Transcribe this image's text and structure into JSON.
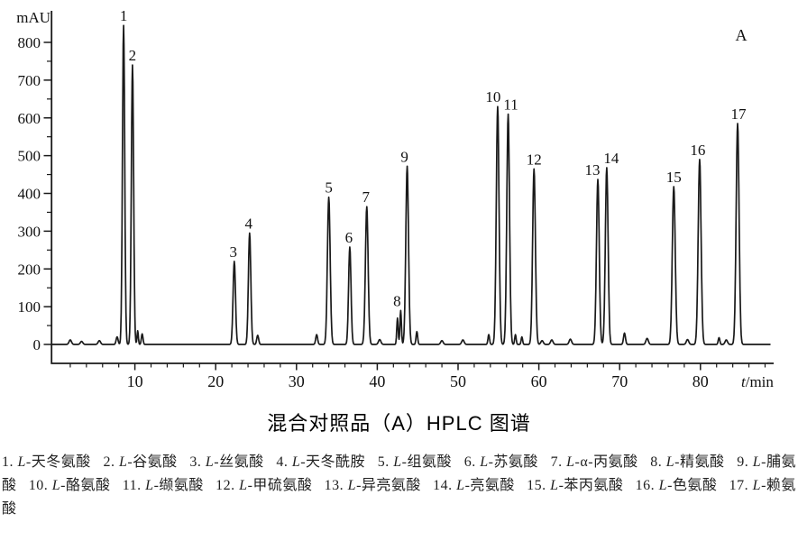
{
  "title": "混合对照品（A）HPLC 图谱",
  "panel_label": "A",
  "chart_data": {
    "type": "line",
    "kind": "hplc-chromatogram",
    "title": "混合对照品（A）HPLC 图谱",
    "ylabel": "mAU",
    "xlabel": "t/min",
    "line_color": "#1a1a1a",
    "axis_color": "#1a1a1a",
    "grid": false,
    "xlim": [
      0,
      88
    ],
    "ylim_display": [
      -60,
      870
    ],
    "x_ticks_major": [
      10,
      20,
      30,
      40,
      50,
      60,
      70,
      80
    ],
    "x_minor_step": 2,
    "y_ticks_major": [
      0,
      100,
      200,
      300,
      400,
      500,
      600,
      700,
      800
    ],
    "y_minor_step": 50,
    "peaks": [
      {
        "num": 1,
        "name": "L-天冬氨酸",
        "t_min": 8.6,
        "mAU": 845,
        "sigma": 0.14,
        "label_dx": 0
      },
      {
        "num": 2,
        "name": "L-谷氨酸",
        "t_min": 9.7,
        "mAU": 740,
        "sigma": 0.14,
        "label_dx": 0
      },
      {
        "num": 3,
        "name": "L-丝氨酸",
        "t_min": 22.3,
        "mAU": 220,
        "sigma": 0.15,
        "label_dx": -1
      },
      {
        "num": 4,
        "name": "L-天冬酰胺",
        "t_min": 24.2,
        "mAU": 295,
        "sigma": 0.15,
        "label_dx": -1
      },
      {
        "num": 5,
        "name": "L-组氨酸",
        "t_min": 34.0,
        "mAU": 390,
        "sigma": 0.17,
        "label_dx": 0
      },
      {
        "num": 6,
        "name": "L-苏氨酸",
        "t_min": 36.6,
        "mAU": 258,
        "sigma": 0.15,
        "label_dx": -1
      },
      {
        "num": 7,
        "name": "L-α-丙氨酸",
        "t_min": 38.7,
        "mAU": 365,
        "sigma": 0.17,
        "label_dx": -1
      },
      {
        "num": 8,
        "name": "L-精氨酸",
        "t_min": 42.9,
        "mAU": 90,
        "sigma": 0.09,
        "label_dx": -4
      },
      {
        "num": 9,
        "name": "L-脯氨酸",
        "t_min": 43.7,
        "mAU": 472,
        "sigma": 0.17,
        "label_dx": -3
      },
      {
        "num": 10,
        "name": "L-酪氨酸",
        "t_min": 54.9,
        "mAU": 630,
        "sigma": 0.17,
        "label_dx": -5
      },
      {
        "num": 11,
        "name": "L-缬氨酸",
        "t_min": 56.2,
        "mAU": 610,
        "sigma": 0.17,
        "label_dx": 3
      },
      {
        "num": 12,
        "name": "L-甲硫氨酸",
        "t_min": 59.4,
        "mAU": 465,
        "sigma": 0.17,
        "label_dx": 0
      },
      {
        "num": 13,
        "name": "L-异亮氨酸",
        "t_min": 67.3,
        "mAU": 437,
        "sigma": 0.17,
        "label_dx": -6
      },
      {
        "num": 14,
        "name": "L-亮氨酸",
        "t_min": 68.4,
        "mAU": 468,
        "sigma": 0.17,
        "label_dx": 5
      },
      {
        "num": 15,
        "name": "L-苯丙氨酸",
        "t_min": 76.7,
        "mAU": 418,
        "sigma": 0.18,
        "label_dx": 0
      },
      {
        "num": 16,
        "name": "L-色氨酸",
        "t_min": 79.9,
        "mAU": 490,
        "sigma": 0.18,
        "label_dx": -2
      },
      {
        "num": 17,
        "name": "L-赖氨酸",
        "t_min": 84.6,
        "mAU": 585,
        "sigma": 0.18,
        "label_dx": 1
      }
    ],
    "minor_peaks": [
      [
        2.0,
        12
      ],
      [
        3.4,
        8
      ],
      [
        5.6,
        10
      ],
      [
        7.8,
        20,
        0.12
      ],
      [
        10.35,
        36,
        0.08
      ],
      [
        10.9,
        28,
        0.1
      ],
      [
        25.2,
        24,
        0.12
      ],
      [
        32.5,
        26,
        0.12
      ],
      [
        40.3,
        13
      ],
      [
        42.5,
        70,
        0.09
      ],
      [
        44.9,
        34,
        0.1
      ],
      [
        48.0,
        10
      ],
      [
        50.6,
        12
      ],
      [
        53.8,
        26,
        0.1
      ],
      [
        57.1,
        26,
        0.09
      ],
      [
        57.9,
        20,
        0.09
      ],
      [
        60.4,
        10
      ],
      [
        61.6,
        12
      ],
      [
        63.9,
        14
      ],
      [
        70.6,
        30,
        0.12
      ],
      [
        73.4,
        16
      ],
      [
        78.4,
        13
      ],
      [
        82.3,
        18,
        0.1
      ],
      [
        83.2,
        12
      ]
    ]
  },
  "caption": {
    "lines": [
      [
        "1. L-天冬氨酸",
        "2. L-谷氨酸",
        "3. L-丝氨酸",
        "4. L-天冬酰胺",
        "5. L-组氨酸",
        "6. L-苏氨酸",
        "7. L-α-丙氨酸",
        "8. L-精氨酸",
        "9. L-脯氨"
      ],
      [
        "酸",
        "10. L-酪氨酸",
        "11. L-缬氨酸",
        "12. L-甲硫氨酸",
        "13. L-异亮氨酸",
        "14. L-亮氨酸",
        "15. L-苯丙氨酸",
        "16. L-色氨酸",
        "17. L-赖氨"
      ],
      [
        "酸"
      ]
    ]
  }
}
